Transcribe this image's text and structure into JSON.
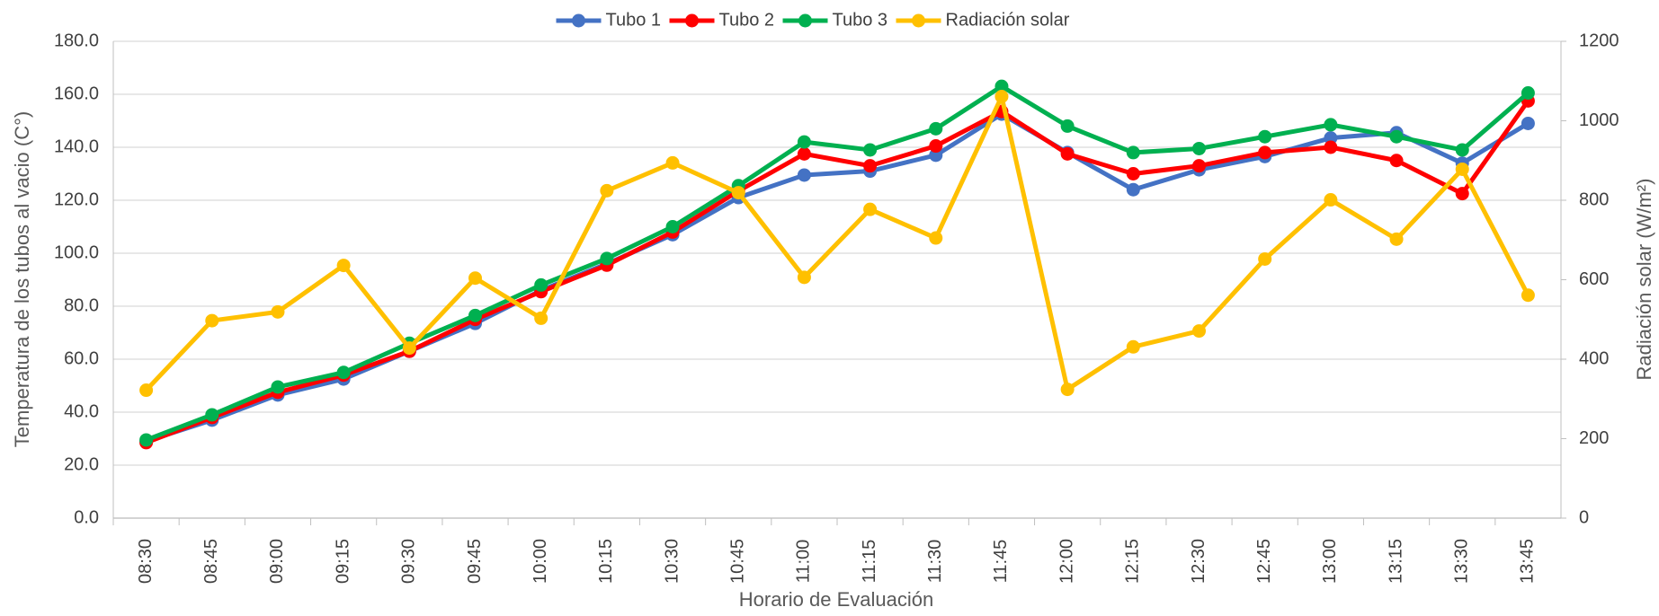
{
  "chart_data": {
    "type": "line",
    "x_label": "Horario de Evaluación",
    "y_label": "Temperatura de los tubos al vacio  (C°)",
    "y2_label": "Radiación solar (W/m²)",
    "categories": [
      "08:30",
      "08:45",
      "09:00",
      "09:15",
      "09:30",
      "09:45",
      "10:00",
      "10:15",
      "10:30",
      "10:45",
      "11:00",
      "11:15",
      "11:30",
      "11:45",
      "12:00",
      "12:15",
      "12:30",
      "12:45",
      "13:00",
      "13:15",
      "13:30",
      "13:45"
    ],
    "series": [
      {
        "name": "Tubo 1",
        "color": "#4472c4",
        "values": [
          29,
          37,
          46.5,
          52.5,
          63,
          73.5,
          86,
          96,
          107,
          121,
          129.5,
          131,
          137,
          152.5,
          138,
          124,
          131.5,
          136.5,
          143.5,
          145.5,
          134,
          149
        ]
      },
      {
        "name": "Tubo 2",
        "color": "#ff0000",
        "values": [
          28.5,
          38,
          47.5,
          54,
          63,
          75,
          85.5,
          95.5,
          108,
          123.5,
          137.5,
          133,
          140.5,
          153.5,
          137.5,
          130,
          133,
          138,
          140,
          135,
          122.5,
          157.5
        ]
      },
      {
        "name": "Tubo 3",
        "color": "#00b050",
        "values": [
          29.5,
          39,
          49.5,
          55,
          66,
          76.5,
          88,
          98,
          110,
          125.5,
          142,
          139,
          147,
          163,
          148,
          138,
          139.5,
          144,
          148.5,
          144,
          139,
          160.5
        ]
      },
      {
        "name": "Radiación solar",
        "color": "#ffc000",
        "axis": "y2",
        "values": [
          322,
          497,
          519,
          636,
          428,
          604,
          503,
          824,
          894,
          819,
          606,
          777,
          705,
          1061,
          324,
          431,
          471,
          652,
          801,
          702,
          878,
          561
        ]
      }
    ],
    "ylim": [
      0,
      180
    ],
    "yticks": [
      {
        "value": 0,
        "label": "0.0"
      },
      {
        "value": 20,
        "label": "20.0"
      },
      {
        "value": 40,
        "label": "40.0"
      },
      {
        "value": 60,
        "label": "60.0"
      },
      {
        "value": 80,
        "label": "80.0"
      },
      {
        "value": 100,
        "label": "100.0"
      },
      {
        "value": 120,
        "label": "120.0"
      },
      {
        "value": 140,
        "label": "140.0"
      },
      {
        "value": 160,
        "label": "160.0"
      },
      {
        "value": 180,
        "label": "180.0"
      }
    ],
    "y2lim": [
      0,
      1200
    ],
    "y2ticks": [
      0,
      200,
      400,
      600,
      800,
      1000,
      1200
    ],
    "grid": true,
    "legend": "top"
  }
}
